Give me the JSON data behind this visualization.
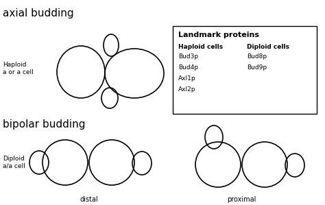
{
  "bg_color": "#ffffff",
  "title_axial": "axial budding",
  "title_bipolar": "bipolar budding",
  "label_haploid": "Haploid\na or a cell",
  "label_diploid": "Diploid\na/a cell",
  "label_distal": "distal",
  "label_proximal": "proximal",
  "box_title": "Landmark proteins",
  "box_col1_header": "Haploid cells",
  "box_col2_header": "Diploid cells",
  "box_col1": [
    "Bud3p",
    "Bud4p",
    "Axl1p",
    "Axl2p"
  ],
  "box_col2": [
    "Bud8p",
    "Bud9p"
  ],
  "circle_color": "#000000",
  "lw": 1.2
}
